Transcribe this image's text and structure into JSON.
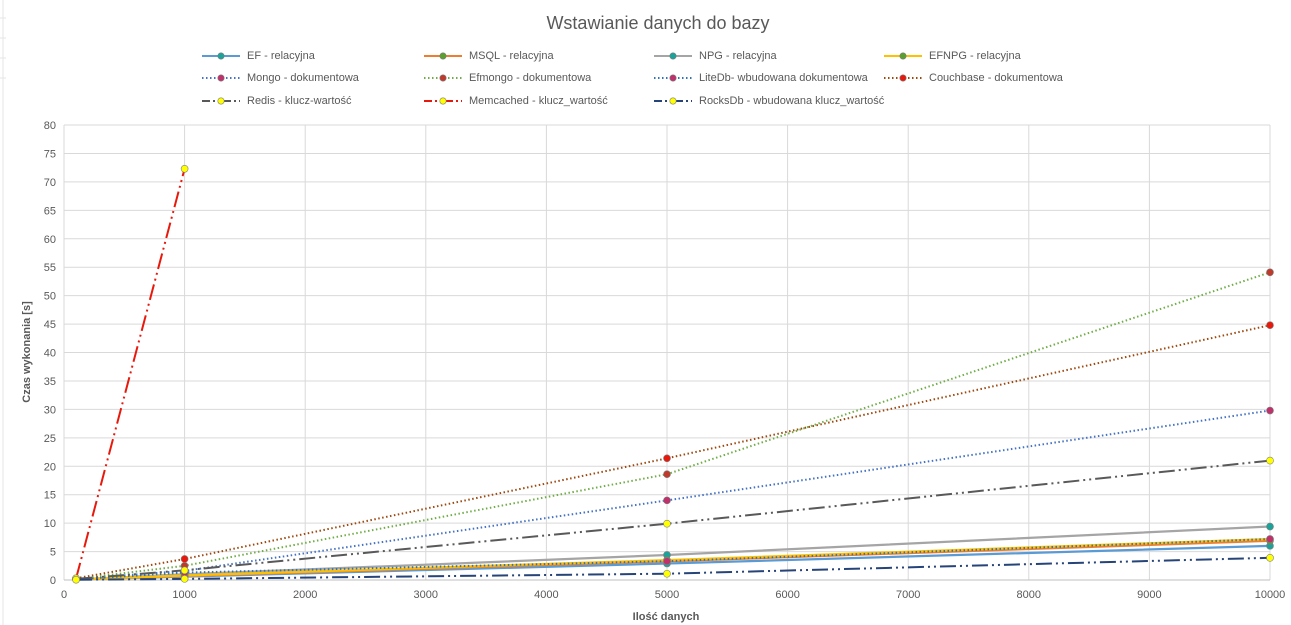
{
  "chart_data": {
    "type": "line",
    "title": "Wstawianie danych do bazy",
    "xlabel": "Ilość danych",
    "ylabel": "Czas wykonania [s]",
    "xlim": [
      0,
      10000
    ],
    "ylim": [
      0,
      80
    ],
    "xticks": [
      0,
      1000,
      2000,
      3000,
      4000,
      5000,
      6000,
      7000,
      8000,
      9000,
      10000
    ],
    "yticks": [
      0,
      5,
      10,
      15,
      20,
      25,
      30,
      35,
      40,
      45,
      50,
      55,
      60,
      65,
      70,
      75,
      80
    ],
    "grid": true,
    "legend_position": "top",
    "series": [
      {
        "name": "EF - relacyjna",
        "color": "#5b9bd5",
        "marker": "#1aa39a",
        "dash": "solid",
        "x": [
          100,
          1000,
          5000,
          10000
        ],
        "y": [
          0.1,
          0.6,
          2.9,
          6.0
        ]
      },
      {
        "name": "MSQL - relacyjna",
        "color": "#ed7d31",
        "marker": "#5aa02c",
        "dash": "solid",
        "x": [
          100,
          1000,
          5000,
          10000
        ],
        "y": [
          0.1,
          0.7,
          3.3,
          6.9
        ]
      },
      {
        "name": "NPG - relacyjna",
        "color": "#a5a5a5",
        "marker": "#1aa39a",
        "dash": "solid",
        "x": [
          100,
          1000,
          5000,
          10000
        ],
        "y": [
          0.1,
          1.0,
          4.4,
          9.4
        ]
      },
      {
        "name": "EFNPG - relacyjna",
        "color": "#ffc000",
        "marker": "#5aa02c",
        "dash": "solid",
        "x": [
          100,
          1000,
          5000,
          10000
        ],
        "y": [
          0.1,
          0.8,
          3.5,
          7.2
        ]
      },
      {
        "name": "Mongo - dokumentowa",
        "color": "#4472c4",
        "marker": "#c0306a",
        "dash": "dot",
        "x": [
          100,
          1000,
          5000,
          10000
        ],
        "y": [
          0.2,
          1.6,
          14.0,
          29.8
        ]
      },
      {
        "name": "Efmongo - dokumentowa",
        "color": "#70ad47",
        "marker": "#c0392b",
        "dash": "dot",
        "x": [
          100,
          1000,
          5000,
          10000
        ],
        "y": [
          0.2,
          2.5,
          18.6,
          54.1
        ]
      },
      {
        "name": "LiteDb- wbudowana dokumentowa",
        "color": "#2e75b6",
        "marker": "#c0306a",
        "dash": "dot",
        "x": [
          100,
          1000,
          5000,
          10000
        ],
        "y": [
          0.1,
          1.3,
          3.3,
          7.2
        ]
      },
      {
        "name": "Couchbase - dokumentowa",
        "color": "#9e480e",
        "marker": "#e8190c",
        "dash": "dot",
        "x": [
          100,
          1000,
          5000,
          10000
        ],
        "y": [
          0.3,
          3.7,
          21.4,
          44.8
        ]
      },
      {
        "name": "Redis - klucz-wartość",
        "color": "#595959",
        "marker": "#ffff00",
        "dash": "dashdotdot",
        "x": [
          100,
          1000,
          5000,
          10000
        ],
        "y": [
          0.2,
          1.7,
          9.9,
          21.0
        ]
      },
      {
        "name": "Memcached - klucz_wartość",
        "color": "#e8190c",
        "marker": "#ffff00",
        "dash": "dashdotdot",
        "x": [
          100,
          1000
        ],
        "y": [
          0.3,
          72.3
        ]
      },
      {
        "name": "RocksDb -  wbudowana klucz_wartość",
        "color": "#264478",
        "marker": "#ffff00",
        "dash": "dashdotdot",
        "x": [
          100,
          1000,
          5000,
          10000
        ],
        "y": [
          0.05,
          0.2,
          1.1,
          3.9
        ]
      }
    ]
  }
}
